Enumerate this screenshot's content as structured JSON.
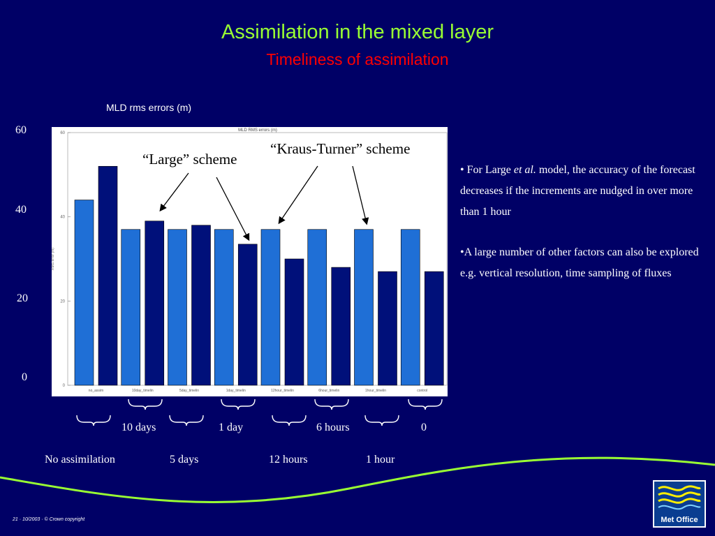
{
  "slide": {
    "title": "Assimilation in the mixed layer",
    "subtitle": "Timeliness of assimilation",
    "footer": "21 · 10/2003 · © Crown copyright",
    "logo_text": "Met Office"
  },
  "colors": {
    "background": "#000066",
    "title": "#99ff33",
    "subtitle": "#ff0000",
    "bar_light": "#1f6fd6",
    "bar_dark": "#00107a"
  },
  "chart_data": {
    "type": "bar",
    "title": "MLD rms errors (m)",
    "inner_title": "MLD RMS errors (m)",
    "ylabel": "RMS error (m)",
    "ylim": [
      0,
      60
    ],
    "y_ticks_outer": [
      "60",
      "40",
      "20",
      "0"
    ],
    "y_ticks_inner": [
      "60",
      "40",
      "20",
      "0"
    ],
    "categories": [
      "no_assim",
      "10day_timelin",
      "5day_timelin",
      "1day_timelin",
      "12hour_timelin",
      "6hour_timelin",
      "1hour_timelin",
      "control"
    ],
    "series": [
      {
        "name": "Large scheme",
        "values": [
          44,
          37,
          37,
          37,
          37,
          37,
          37,
          37
        ]
      },
      {
        "name": "Kraus-Turner scheme",
        "values": [
          52,
          39,
          38,
          33.5,
          30,
          28,
          27,
          27
        ]
      }
    ],
    "annotations": {
      "large": "“Large” scheme",
      "kraus": "“Kraus-Turner” scheme"
    },
    "group_labels": {
      "upper": [
        "10 days",
        "1 day",
        "6 hours",
        "0"
      ],
      "lower": [
        "No assimilation",
        "5 days",
        "12 hours",
        "1 hour"
      ]
    }
  },
  "bullets": [
    {
      "prefix": "•  For Large ",
      "em": "et al.",
      "rest": " model, the accuracy of the forecast decreases if the increments are nudged in over more than 1 hour"
    },
    {
      "prefix": "•A large number of other factors can also be explored e.g. vertical resolution, time sampling of fluxes",
      "em": "",
      "rest": ""
    }
  ]
}
